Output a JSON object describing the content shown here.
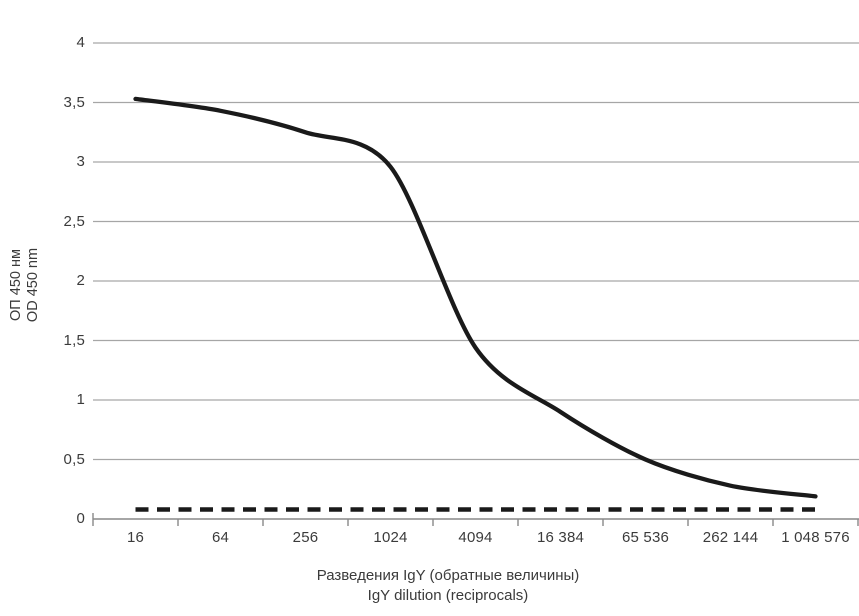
{
  "chart_data": {
    "type": "line",
    "title": "",
    "categories": [
      "16",
      "64",
      "256",
      "1024",
      "4094",
      "16 384",
      "65 536",
      "262 144",
      "1 048 576"
    ],
    "series": [
      {
        "name": "solid-line",
        "style": "solid",
        "values": [
          3.53,
          3.43,
          3.25,
          2.96,
          1.44,
          0.9,
          0.5,
          0.28,
          0.19
        ]
      },
      {
        "name": "dashed-line",
        "style": "dashed",
        "values": [
          0.08,
          0.08,
          0.08,
          0.08,
          0.08,
          0.08,
          0.08,
          0.08,
          0.08
        ]
      }
    ],
    "yticks": [
      {
        "label": "4",
        "value": 4
      },
      {
        "label": "3,5",
        "value": 3.5
      },
      {
        "label": "3",
        "value": 3
      },
      {
        "label": "2,5",
        "value": 2.5
      },
      {
        "label": "2",
        "value": 2
      },
      {
        "label": "1,5",
        "value": 1.5
      },
      {
        "label": "1",
        "value": 1
      },
      {
        "label": "0,5",
        "value": 0.5
      },
      {
        "label": "0",
        "value": 0
      }
    ],
    "ylim": [
      0,
      4
    ],
    "grid": true,
    "legend": "none",
    "xlabel_line1": "Разведения IgY (обратные величины)",
    "xlabel_line2": "IgY dilution (reciprocals)",
    "ylabel_line1": "ОП 450 нм",
    "ylabel_line2": "OD 450 nm",
    "colors": {
      "line": "#1a1a1a",
      "gridline": "#a6a6a6",
      "axis": "#898989",
      "text": "#3b3b3b",
      "background": "#ffffff"
    }
  }
}
